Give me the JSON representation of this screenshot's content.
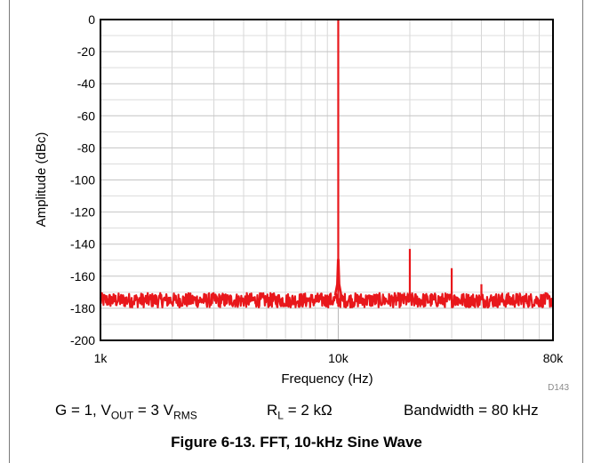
{
  "chart_data": {
    "type": "line",
    "ylabel": "Amplitude (dBc)",
    "xlabel": "Frequency (Hz)",
    "xscale": "log",
    "xlim": [
      1000,
      80000
    ],
    "ylim": [
      -200,
      0
    ],
    "x_ticks": [
      {
        "value": 1000,
        "label": "1k"
      },
      {
        "value": 10000,
        "label": "10k"
      },
      {
        "value": 80000,
        "label": "80k"
      }
    ],
    "y_ticks": [
      {
        "value": 0,
        "label": "0"
      },
      {
        "value": -20,
        "label": "-20"
      },
      {
        "value": -40,
        "label": "-40"
      },
      {
        "value": -60,
        "label": "-60"
      },
      {
        "value": -80,
        "label": "-80"
      },
      {
        "value": -100,
        "label": "-100"
      },
      {
        "value": -120,
        "label": "-120"
      },
      {
        "value": -140,
        "label": "-140"
      },
      {
        "value": -160,
        "label": "-160"
      },
      {
        "value": -180,
        "label": "-180"
      },
      {
        "value": -200,
        "label": "-200"
      }
    ],
    "grid": true,
    "series_color": "#e8171b",
    "noise_floor_db": -175,
    "peaks": [
      {
        "x": 10000,
        "y": 0
      },
      {
        "x": 20000,
        "y": -143
      },
      {
        "x": 30000,
        "y": -155
      },
      {
        "x": 40000,
        "y": -165
      }
    ],
    "figure_id": "D143"
  },
  "conditions": {
    "gain": "G = 1, V",
    "vout_sub": "OUT",
    "vout_eq": " = 3 V",
    "vrms_sub": "RMS",
    "rl": "R",
    "rl_sub": "L",
    "rl_eq": " = 2 kΩ",
    "bandwidth": "Bandwidth = 80 kHz"
  },
  "caption": "Figure 6-13. FFT, 10-kHz Sine Wave"
}
